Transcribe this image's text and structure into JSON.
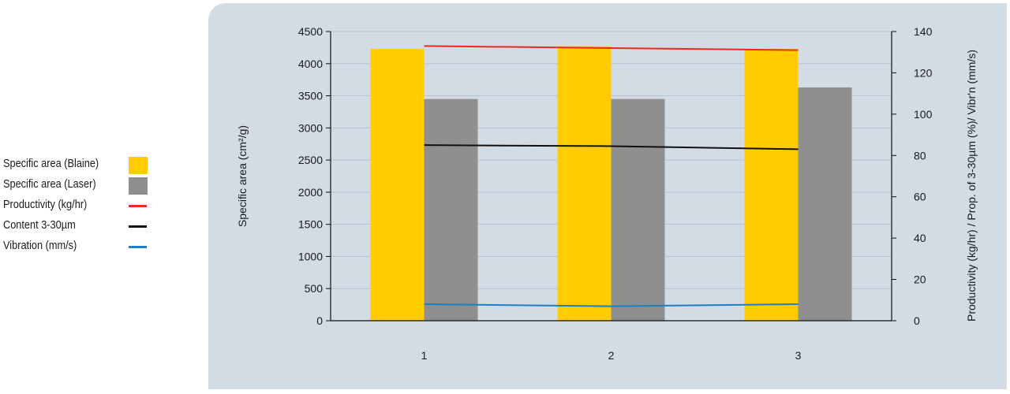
{
  "chart_data": {
    "type": "bar",
    "categories": [
      "1",
      "2",
      "3"
    ],
    "series": [
      {
        "name": "Specific area (Blaine)",
        "kind": "bar",
        "axis": "left",
        "values": [
          4230,
          4270,
          4230
        ]
      },
      {
        "name": "Specific area (Laser)",
        "kind": "bar",
        "axis": "left",
        "values": [
          3450,
          3450,
          3630
        ]
      },
      {
        "name": "Productivity (kg/hr)",
        "kind": "line",
        "axis": "right",
        "values": [
          133,
          132,
          131
        ]
      },
      {
        "name": "Content 3-30µm",
        "kind": "line",
        "axis": "right",
        "values": [
          85,
          84.5,
          83
        ]
      },
      {
        "name": "Vibration (mm/s)",
        "kind": "line",
        "axis": "right",
        "values": [
          8,
          7,
          8
        ]
      }
    ],
    "ylabel_left": "Specific area (cm²/g)",
    "ylabel_right": "Productivity (kg/hr) / Prop. of 3-30µm (%)/ Vibr'n (mm/s)",
    "ylim_left": [
      0,
      4500
    ],
    "ylim_right": [
      0,
      140
    ],
    "yticks_left": [
      "0",
      "500",
      "1000",
      "1500",
      "2000",
      "2500",
      "3000",
      "3500",
      "4000",
      "4500"
    ],
    "yticks_right": [
      "0",
      "20",
      "40",
      "60",
      "80",
      "100",
      "120",
      "140"
    ],
    "grid": true,
    "legend_position": "left"
  },
  "colors": {
    "blaine": "#ffcc00",
    "laser": "#8f8f8f",
    "productivity": "#ee2a1f",
    "content": "#111111",
    "vibration": "#1b80c4",
    "panel": "#d3dbe4",
    "grid": "#b9c3cf"
  }
}
